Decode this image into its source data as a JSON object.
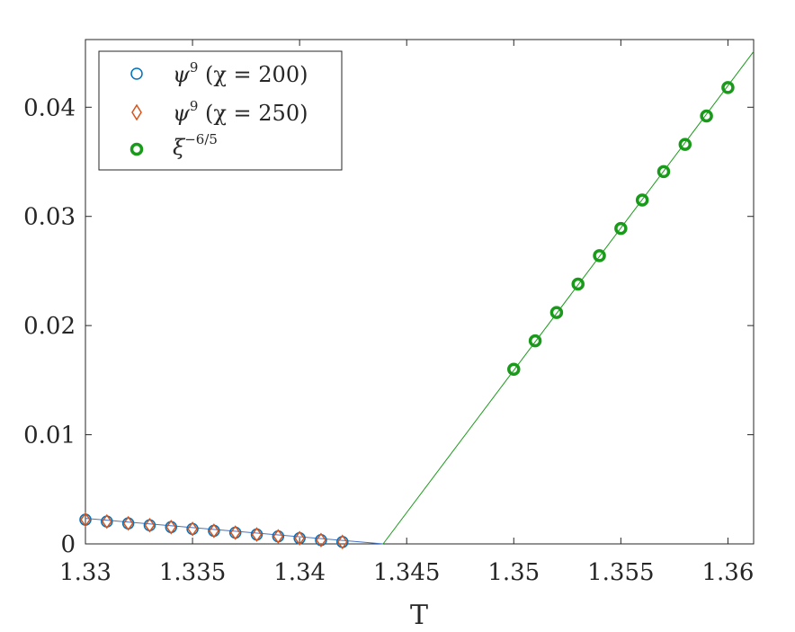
{
  "chart_data": {
    "type": "scatter",
    "xlabel": "T",
    "ylabel": "",
    "xlim": [
      1.33,
      1.3612
    ],
    "ylim": [
      0,
      0.0462
    ],
    "xticks": [
      1.33,
      1.335,
      1.34,
      1.345,
      1.35,
      1.355,
      1.36
    ],
    "xtick_labels": [
      "1.33",
      "1.335",
      "1.34",
      "1.345",
      "1.35",
      "1.355",
      "1.36"
    ],
    "yticks": [
      0,
      0.01,
      0.02,
      0.03,
      0.04
    ],
    "ytick_labels": [
      "0",
      "0.01",
      "0.02",
      "0.03",
      "0.04"
    ],
    "grid": false,
    "legend_position": "top-left",
    "series": [
      {
        "name": "ψ⁹ (χ = 200)",
        "legend": {
          "base": "ψ",
          "sup": "9",
          "rest": " (χ = 200)"
        },
        "marker": "circle",
        "color": "#0072BD",
        "x": [
          1.33,
          1.331,
          1.332,
          1.333,
          1.334,
          1.335,
          1.336,
          1.337,
          1.338,
          1.339,
          1.34,
          1.341,
          1.342
        ],
        "y": [
          0.00222,
          0.00205,
          0.00188,
          0.00171,
          0.00154,
          0.00137,
          0.0012,
          0.00103,
          0.00086,
          0.00069,
          0.00052,
          0.00035,
          0.00018
        ]
      },
      {
        "name": "ψ⁹ (χ = 250)",
        "legend": {
          "base": "ψ",
          "sup": "9",
          "rest": " (χ = 250)"
        },
        "marker": "diamond",
        "color": "#D95319",
        "x": [
          1.33,
          1.331,
          1.332,
          1.333,
          1.334,
          1.335,
          1.336,
          1.337,
          1.338,
          1.339,
          1.34,
          1.341,
          1.342
        ],
        "y": [
          0.00222,
          0.00205,
          0.00188,
          0.00171,
          0.00154,
          0.00137,
          0.0012,
          0.00103,
          0.00086,
          0.00069,
          0.00052,
          0.00035,
          0.00018
        ]
      },
      {
        "name": "ξ^(−6/5)",
        "legend": {
          "base": "ξ",
          "sup": "−6/5",
          "rest": ""
        },
        "marker": "circle-bold",
        "color": "#1A9A1A",
        "x": [
          1.35,
          1.351,
          1.352,
          1.353,
          1.354,
          1.355,
          1.356,
          1.357,
          1.358,
          1.359,
          1.36
        ],
        "y": [
          0.016,
          0.0186,
          0.0212,
          0.0238,
          0.0264,
          0.0289,
          0.0315,
          0.0341,
          0.0366,
          0.0392,
          0.0418
        ]
      }
    ],
    "fit_lines": [
      {
        "color": "#4472C4",
        "x": [
          1.33,
          1.3439
        ],
        "y": [
          0.00234,
          0.0
        ]
      },
      {
        "color": "#1A9A1A",
        "x": [
          1.3439,
          1.3612
        ],
        "y": [
          0.0,
          0.0451
        ]
      }
    ]
  }
}
